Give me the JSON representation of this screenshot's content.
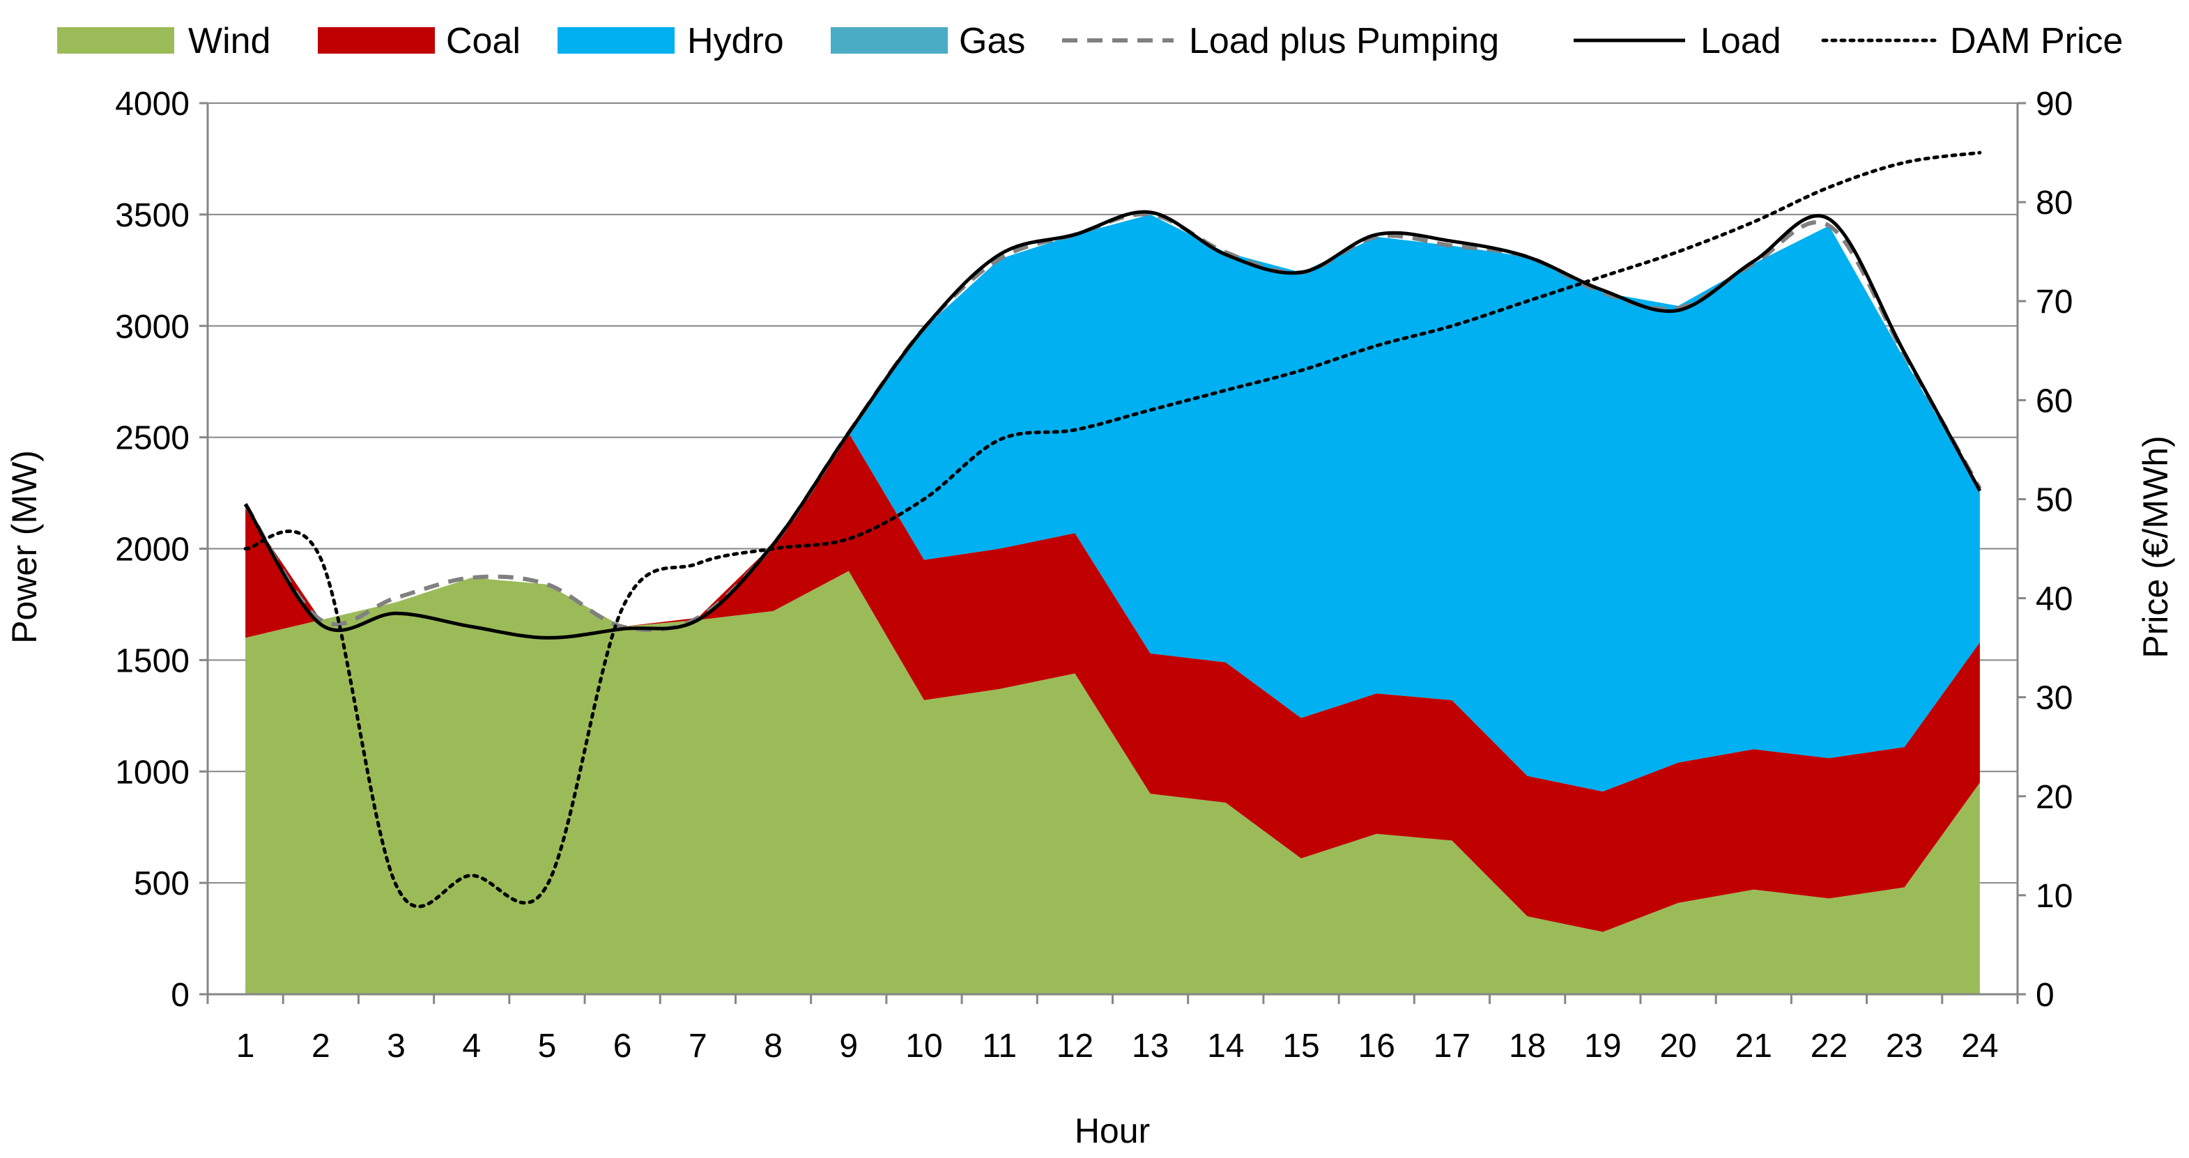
{
  "chart_data": {
    "type": "area",
    "title": "",
    "xlabel": "Hour",
    "ylabel_left": "Power (MW)",
    "ylabel_right": "Price (€/MWh)",
    "categories": [
      "1",
      "2",
      "3",
      "4",
      "5",
      "6",
      "7",
      "8",
      "9",
      "10",
      "11",
      "12",
      "13",
      "14",
      "15",
      "16",
      "17",
      "18",
      "19",
      "20",
      "21",
      "22",
      "23",
      "24"
    ],
    "ylim_left": [
      0,
      4000
    ],
    "yticks_left": [
      0,
      500,
      1000,
      1500,
      2000,
      2500,
      3000,
      3500,
      4000
    ],
    "ylim_right": [
      0,
      90
    ],
    "yticks_right": [
      0,
      10,
      20,
      30,
      40,
      50,
      60,
      70,
      80,
      90
    ],
    "grid": true,
    "legend_position": "top",
    "stacked_series": [
      {
        "name": "Wind",
        "color": "#9BBB59",
        "values": [
          1600,
          1680,
          1760,
          1870,
          1840,
          1650,
          1680,
          1720,
          1900,
          1320,
          1370,
          1440,
          900,
          860,
          610,
          720,
          690,
          350,
          280,
          410,
          470,
          430,
          480,
          950
        ]
      },
      {
        "name": "Coal",
        "color": "#C00000",
        "values": [
          580,
          0,
          0,
          0,
          0,
          0,
          10,
          300,
          620,
          630,
          630,
          630,
          630,
          630,
          630,
          630,
          630,
          630,
          630,
          630,
          630,
          630,
          630,
          630
        ]
      },
      {
        "name": "Hydro",
        "color": "#00B0F0",
        "values": [
          0,
          0,
          0,
          0,
          0,
          0,
          0,
          0,
          0,
          1040,
          1300,
          1340,
          1970,
          1840,
          2000,
          2050,
          2040,
          2330,
          2240,
          2050,
          2180,
          2390,
          1740,
          680
        ]
      },
      {
        "name": "Gas",
        "color": "#4BACC6",
        "values": [
          0,
          0,
          0,
          0,
          0,
          0,
          0,
          0,
          0,
          0,
          0,
          0,
          0,
          0,
          0,
          0,
          0,
          0,
          0,
          0,
          0,
          0,
          0,
          0
        ]
      }
    ],
    "line_series": [
      {
        "name": "Load plus Pumping",
        "style": "dashed",
        "color": "#808080",
        "axis": "left",
        "values": [
          2200,
          1680,
          1780,
          1870,
          1840,
          1650,
          1690,
          2020,
          2520,
          2990,
          3300,
          3410,
          3500,
          3330,
          3240,
          3400,
          3360,
          3310,
          3150,
          3080,
          3280,
          3450,
          2870,
          2270
        ]
      },
      {
        "name": "Load",
        "style": "solid",
        "color": "#000000",
        "axis": "left",
        "values": [
          2200,
          1660,
          1710,
          1650,
          1600,
          1640,
          1680,
          2020,
          2520,
          2990,
          3320,
          3410,
          3510,
          3320,
          3240,
          3410,
          3380,
          3310,
          3160,
          3070,
          3290,
          3480,
          2880,
          2260
        ]
      },
      {
        "name": "DAM Price",
        "style": "dotted",
        "color": "#000000",
        "axis": "right",
        "values": [
          45,
          44,
          11,
          12,
          11,
          39,
          43.5,
          45,
          46,
          50,
          56,
          57,
          59,
          61,
          63,
          65.5,
          67.5,
          70,
          72.5,
          75,
          78,
          81.5,
          84,
          85
        ]
      }
    ],
    "legend": [
      {
        "label": "Wind",
        "kind": "box",
        "color": "#9BBB59"
      },
      {
        "label": "Coal",
        "kind": "box",
        "color": "#C00000"
      },
      {
        "label": "Hydro",
        "kind": "box",
        "color": "#00B0F0"
      },
      {
        "label": "Gas",
        "kind": "box",
        "color": "#4BACC6"
      },
      {
        "label": "Load plus Pumping",
        "kind": "dashed",
        "color": "#808080"
      },
      {
        "label": "Load",
        "kind": "solid",
        "color": "#000000"
      },
      {
        "label": "DAM Price",
        "kind": "dotted",
        "color": "#000000"
      }
    ]
  }
}
